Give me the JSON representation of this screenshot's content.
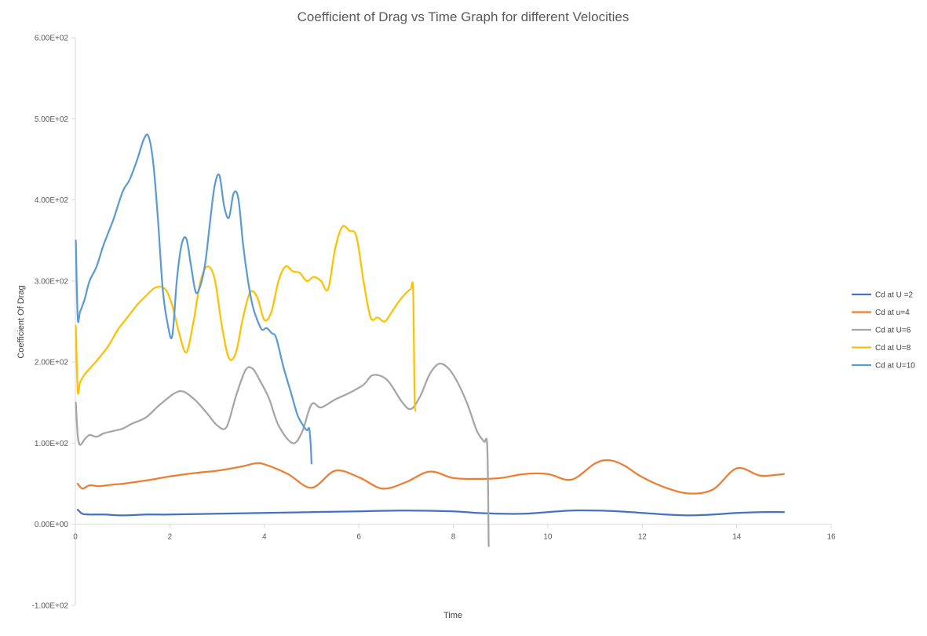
{
  "chart_data": {
    "type": "line",
    "title": "Coefficient of Drag vs Time Graph for different Velocities",
    "xlabel": "Time",
    "ylabel": "Coefficient Of Drag",
    "xlim": [
      0,
      16
    ],
    "ylim": [
      -100,
      600
    ],
    "x_ticks": [
      0,
      2,
      4,
      6,
      8,
      10,
      12,
      14,
      16
    ],
    "x_tick_labels": [
      "0",
      "2",
      "4",
      "6",
      "8",
      "10",
      "12",
      "14",
      "16"
    ],
    "y_ticks": [
      -100,
      0,
      100,
      200,
      300,
      400,
      500,
      600
    ],
    "y_tick_labels": [
      "-1.00E+02",
      "0.00E+00",
      "1.00E+02",
      "2.00E+02",
      "3.00E+02",
      "4.00E+02",
      "5.00E+02",
      "6.00E+02"
    ],
    "grid": false,
    "legend_position": "right",
    "series": [
      {
        "name": "Cd at U =2",
        "color": "#4472C4",
        "x": [
          0.05,
          0.15,
          0.3,
          0.6,
          1,
          1.5,
          2,
          3,
          4,
          5,
          6,
          7,
          8,
          8.5,
          9,
          9.5,
          10,
          10.5,
          11,
          11.5,
          12,
          12.5,
          13,
          13.5,
          14,
          14.5,
          15
        ],
        "y": [
          18,
          13,
          12,
          12,
          11,
          12,
          12,
          13,
          14,
          15,
          16,
          17,
          16,
          14,
          13,
          13,
          15,
          17,
          17,
          16,
          14,
          12,
          11,
          12,
          14,
          15,
          15
        ]
      },
      {
        "name": "Cd at u=4",
        "color": "#ED7D31",
        "x": [
          0.05,
          0.15,
          0.3,
          0.5,
          0.8,
          1,
          1.5,
          2,
          2.5,
          3,
          3.5,
          3.8,
          4,
          4.5,
          5,
          5.5,
          6,
          6.5,
          7,
          7.5,
          8,
          8.5,
          9,
          9.5,
          10,
          10.5,
          11,
          11.3,
          11.6,
          12,
          12.5,
          13,
          13.5,
          14,
          14.5,
          15
        ],
        "y": [
          50,
          44,
          48,
          47,
          49,
          50,
          54,
          59,
          63,
          66,
          71,
          75,
          74,
          62,
          45,
          66,
          58,
          44,
          52,
          65,
          57,
          56,
          57,
          62,
          62,
          55,
          75,
          79,
          73,
          58,
          45,
          38,
          43,
          69,
          60,
          62
        ]
      },
      {
        "name": "Cd at U=6",
        "color": "#A5A5A5",
        "x": [
          0.01,
          0.05,
          0.1,
          0.2,
          0.3,
          0.45,
          0.6,
          0.8,
          1,
          1.2,
          1.5,
          1.8,
          2.2,
          2.5,
          2.8,
          3,
          3.2,
          3.4,
          3.6,
          3.75,
          3.9,
          4.1,
          4.3,
          4.6,
          4.8,
          5,
          5.2,
          5.5,
          5.8,
          6.1,
          6.3,
          6.6,
          6.9,
          7.1,
          7.3,
          7.5,
          7.7,
          7.9,
          8.1,
          8.3,
          8.5,
          8.65,
          8.72,
          8.75
        ],
        "y": [
          150,
          110,
          98,
          105,
          110,
          108,
          112,
          115,
          118,
          124,
          132,
          148,
          164,
          155,
          136,
          122,
          120,
          158,
          190,
          192,
          178,
          155,
          122,
          100,
          114,
          148,
          144,
          154,
          162,
          172,
          184,
          178,
          152,
          142,
          158,
          185,
          198,
          192,
          174,
          148,
          115,
          102,
          95,
          -27
        ]
      },
      {
        "name": "Cd at U=8",
        "color": "#FFC000",
        "x": [
          0.01,
          0.05,
          0.1,
          0.2,
          0.35,
          0.5,
          0.7,
          0.9,
          1.1,
          1.3,
          1.5,
          1.7,
          1.9,
          2.05,
          2.2,
          2.35,
          2.5,
          2.65,
          2.8,
          2.95,
          3.1,
          3.25,
          3.4,
          3.55,
          3.7,
          3.85,
          4,
          4.15,
          4.3,
          4.45,
          4.6,
          4.75,
          4.9,
          5.05,
          5.2,
          5.35,
          5.5,
          5.65,
          5.8,
          5.95,
          6.1,
          6.25,
          6.4,
          6.55,
          6.7,
          6.85,
          7,
          7.1,
          7.15,
          7.18,
          7.2
        ],
        "y": [
          245,
          165,
          175,
          185,
          195,
          205,
          220,
          240,
          255,
          270,
          282,
          292,
          290,
          270,
          235,
          212,
          250,
          300,
          318,
          302,
          245,
          205,
          212,
          255,
          286,
          280,
          252,
          262,
          300,
          318,
          312,
          310,
          300,
          305,
          300,
          290,
          340,
          367,
          362,
          355,
          300,
          255,
          255,
          250,
          262,
          275,
          285,
          290,
          288,
          160,
          140
        ]
      },
      {
        "name": "Cd at U=10",
        "color": "#5B9BD5",
        "x": [
          0.01,
          0.05,
          0.1,
          0.2,
          0.3,
          0.45,
          0.6,
          0.8,
          1,
          1.15,
          1.3,
          1.45,
          1.55,
          1.65,
          1.75,
          1.85,
          1.95,
          2.05,
          2.15,
          2.25,
          2.35,
          2.45,
          2.55,
          2.65,
          2.75,
          2.85,
          2.95,
          3.05,
          3.15,
          3.25,
          3.35,
          3.45,
          3.55,
          3.65,
          3.75,
          3.85,
          3.95,
          4.05,
          4.15,
          4.25,
          4.4,
          4.55,
          4.7,
          4.82,
          4.9,
          4.95,
          4.98,
          5
        ],
        "y": [
          350,
          255,
          262,
          278,
          300,
          318,
          345,
          375,
          410,
          425,
          448,
          475,
          478,
          445,
          375,
          290,
          248,
          232,
          302,
          345,
          352,
          318,
          286,
          295,
          322,
          372,
          418,
          430,
          392,
          378,
          408,
          402,
          345,
          302,
          270,
          252,
          240,
          242,
          236,
          230,
          195,
          165,
          135,
          122,
          116,
          118,
          100,
          75
        ]
      }
    ]
  }
}
